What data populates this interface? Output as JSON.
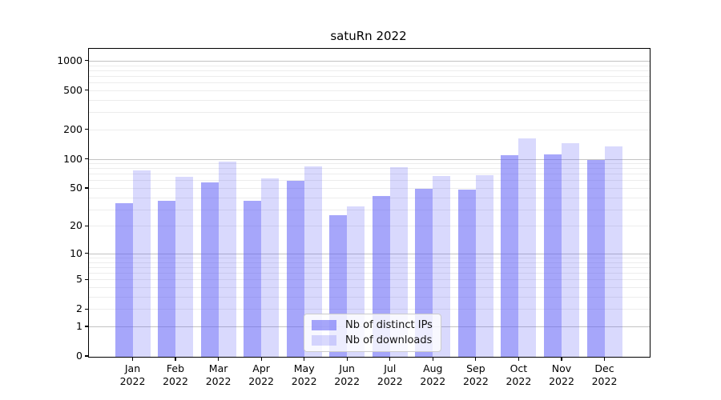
{
  "chart_data": {
    "type": "bar",
    "title": "satuRn 2022",
    "categories": [
      "Jan 2022",
      "Feb 2022",
      "Mar 2022",
      "Apr 2022",
      "May 2022",
      "Jun 2022",
      "Jul 2022",
      "Aug 2022",
      "Sep 2022",
      "Oct 2022",
      "Nov 2022",
      "Dec 2022"
    ],
    "series": [
      {
        "name": "Nb of distinct IPs",
        "color": "rgba(92,92,245,0.55)",
        "values": [
          35,
          37,
          57,
          37,
          59,
          26,
          41,
          49,
          48,
          108,
          111,
          97
        ]
      },
      {
        "name": "Nb of downloads",
        "color": "rgba(92,92,245,0.23)",
        "values": [
          76,
          65,
          94,
          63,
          84,
          32,
          82,
          66,
          68,
          162,
          144,
          133
        ]
      }
    ],
    "yscale": "log1p",
    "yticks": [
      0,
      1,
      2,
      5,
      10,
      20,
      50,
      100,
      200,
      500,
      1000
    ],
    "grid_major_values": [
      1,
      10,
      100,
      1000
    ],
    "grid_minor_decades": [
      1,
      10,
      100
    ],
    "ylim": [
      0,
      1320
    ],
    "xlabel": "",
    "ylabel": "",
    "grid": "on",
    "legend_position": "lower-center-inside"
  }
}
